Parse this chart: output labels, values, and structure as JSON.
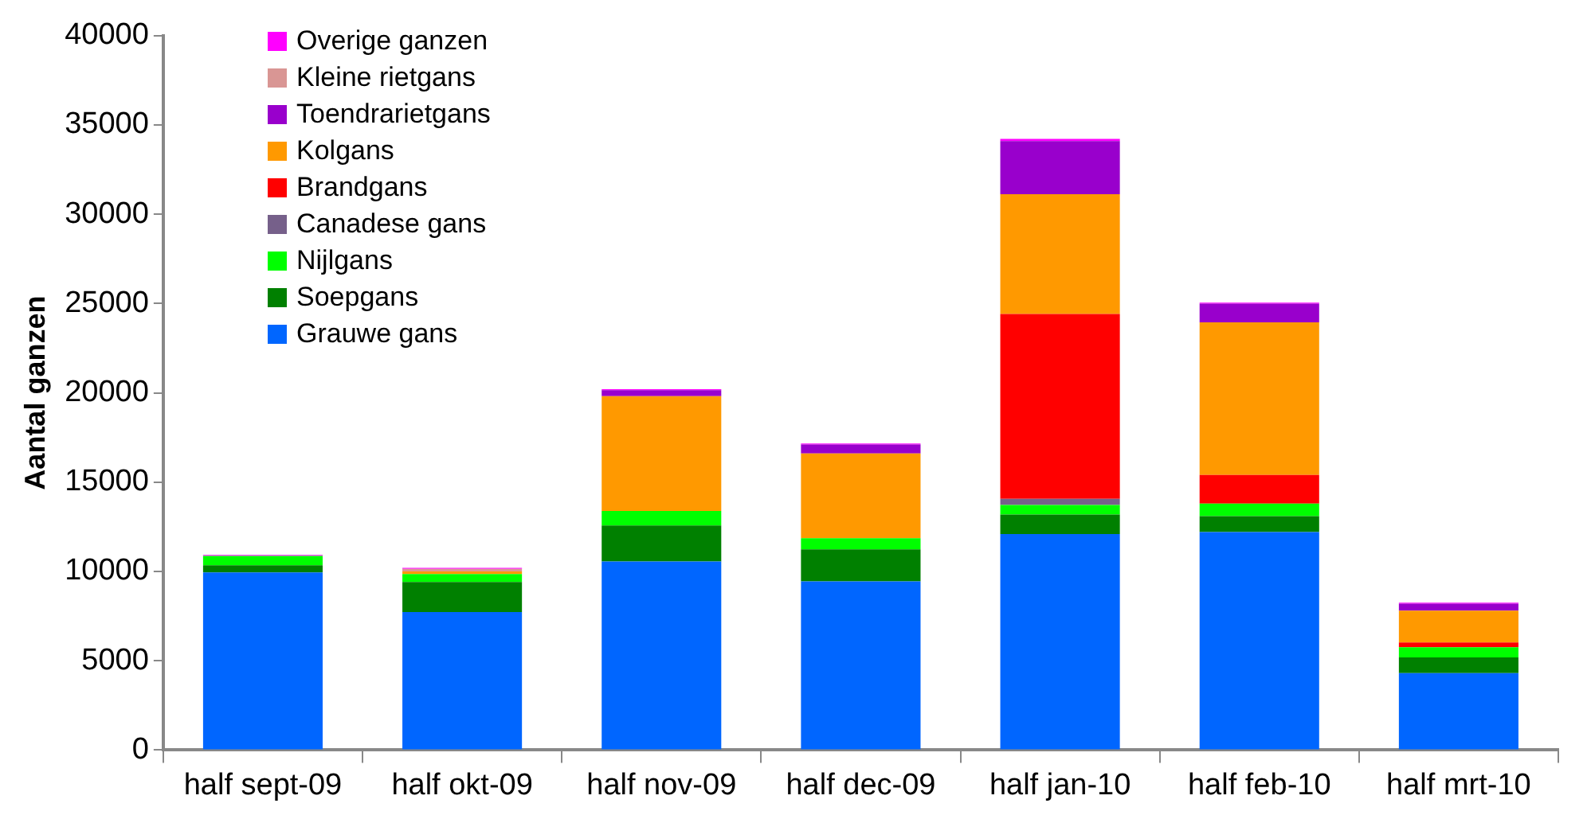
{
  "chart_data": {
    "type": "bar",
    "stacked": true,
    "ylabel": "Aantal ganzen",
    "categories": [
      "half sept-09",
      "half okt-09",
      "half nov-09",
      "half dec-09",
      "half jan-10",
      "half feb-10",
      "half mrt-10"
    ],
    "series": [
      {
        "name": "Grauwe gans",
        "color": "#0066ff",
        "values": [
          9940,
          7730,
          10560,
          9440,
          12100,
          12210,
          4310
        ]
      },
      {
        "name": "Soepgans",
        "color": "#008000",
        "values": [
          400,
          1680,
          2010,
          1800,
          1090,
          890,
          880
        ]
      },
      {
        "name": "Nijlgans",
        "color": "#00ff00",
        "values": [
          530,
          440,
          820,
          620,
          530,
          700,
          560
        ]
      },
      {
        "name": "Canadese gans",
        "color": "#76608a",
        "values": [
          0,
          0,
          0,
          0,
          350,
          0,
          0
        ]
      },
      {
        "name": "Brandgans",
        "color": "#ff0000",
        "values": [
          0,
          0,
          0,
          0,
          10350,
          1600,
          270
        ]
      },
      {
        "name": "Kolgans",
        "color": "#ff9900",
        "values": [
          0,
          150,
          6430,
          4750,
          6700,
          8550,
          1790
        ]
      },
      {
        "name": "Toendrarietgans",
        "color": "#9900cc",
        "values": [
          0,
          0,
          330,
          500,
          2980,
          1050,
          390
        ]
      },
      {
        "name": "Kleine rietgans",
        "color": "#d99694",
        "values": [
          0,
          150,
          0,
          0,
          0,
          0,
          0
        ]
      },
      {
        "name": "Overige ganzen",
        "color": "#ff00ff",
        "values": [
          50,
          50,
          50,
          50,
          120,
          50,
          50
        ]
      }
    ],
    "ylim": [
      0,
      40000
    ],
    "yticks": [
      0,
      5000,
      10000,
      15000,
      20000,
      25000,
      30000,
      35000,
      40000
    ],
    "grid": false,
    "legend": "top left"
  }
}
